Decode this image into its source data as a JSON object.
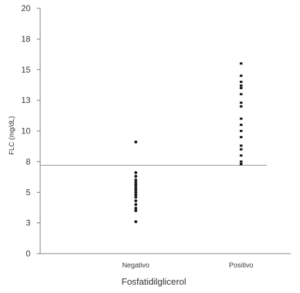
{
  "chart_data": {
    "type": "scatter",
    "xlabel": "Fosfatidilglicerol",
    "ylabel": "FLC (mg/dL)",
    "ylim": [
      0,
      20
    ],
    "yticks": [
      {
        "value": 0,
        "label": "0"
      },
      {
        "value": 2.5,
        "label": "3"
      },
      {
        "value": 5,
        "label": "5"
      },
      {
        "value": 7.5,
        "label": "8"
      },
      {
        "value": 10,
        "label": "10"
      },
      {
        "value": 12.5,
        "label": "13"
      },
      {
        "value": 15,
        "label": "15"
      },
      {
        "value": 17.5,
        "label": "18"
      },
      {
        "value": 20,
        "label": "20"
      }
    ],
    "categories": [
      "Negativo",
      "Positivo"
    ],
    "reference_line": 7.2,
    "series": [
      {
        "category": "Negativo",
        "values": [
          9.1,
          6.6,
          6.3,
          6.0,
          5.8,
          5.6,
          5.4,
          5.2,
          5.0,
          4.8,
          4.6,
          4.3,
          4.0,
          3.7,
          3.5,
          2.6
        ]
      },
      {
        "category": "Positivo",
        "values": [
          15.5,
          14.5,
          14.0,
          13.7,
          13.5,
          13.0,
          12.3,
          12.0,
          11.0,
          10.5,
          10.0,
          9.5,
          8.8,
          8.5,
          8.0,
          7.5,
          7.3
        ]
      }
    ],
    "grid": false,
    "marker_color": "#1a1a1a",
    "axis_color": "#555555"
  }
}
